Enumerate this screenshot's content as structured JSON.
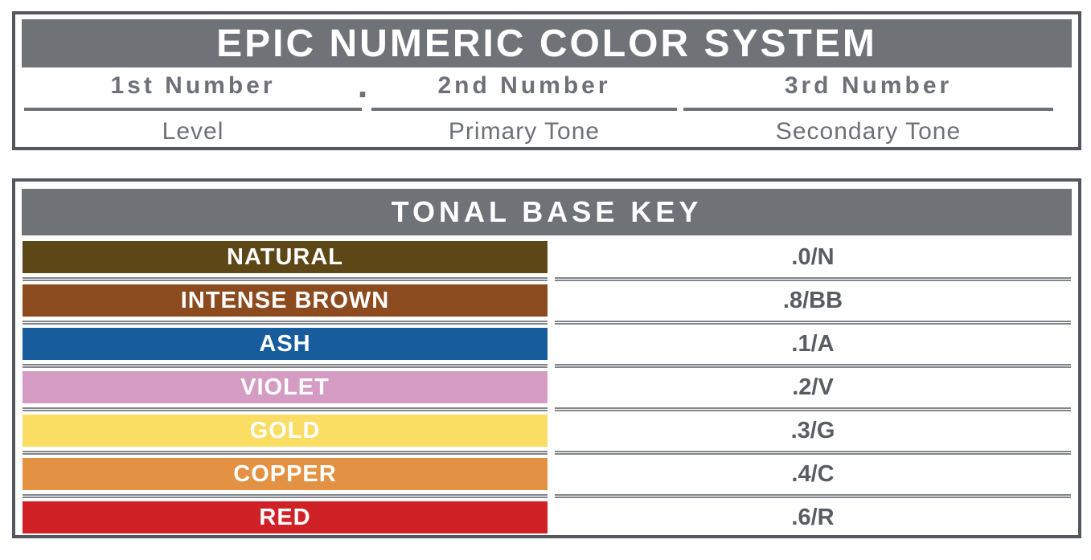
{
  "top_panel": {
    "title": "EPIC NUMERIC COLOR SYSTEM",
    "separator": ".",
    "columns": [
      {
        "number": "1st Number",
        "meaning": "Level"
      },
      {
        "number": "2nd Number",
        "meaning": "Primary Tone"
      },
      {
        "number": "3rd Number",
        "meaning": "Secondary Tone"
      }
    ]
  },
  "tonal_key": {
    "title": "TONAL BASE KEY",
    "rows": [
      {
        "name": "NATURAL",
        "code": ".0/N",
        "color": "#5e4716"
      },
      {
        "name": "INTENSE BROWN",
        "code": ".8/BB",
        "color": "#8c4a1f"
      },
      {
        "name": "ASH",
        "code": ".1/A",
        "color": "#175d9d"
      },
      {
        "name": "VIOLET",
        "code": ".2/V",
        "color": "#d49cc3"
      },
      {
        "name": "GOLD",
        "code": ".3/G",
        "color": "#fadd63"
      },
      {
        "name": "COPPER",
        "code": ".4/C",
        "color": "#e29242"
      },
      {
        "name": "RED",
        "code": ".6/R",
        "color": "#d02127"
      }
    ]
  },
  "colors": {
    "panel_border": "#54575d",
    "header_bg": "#6f7277",
    "header_text": "#ffffff",
    "label_text": "#6d7076",
    "code_text": "#595d61",
    "divider": "#82868a",
    "swatch_text": "#ffffff"
  }
}
